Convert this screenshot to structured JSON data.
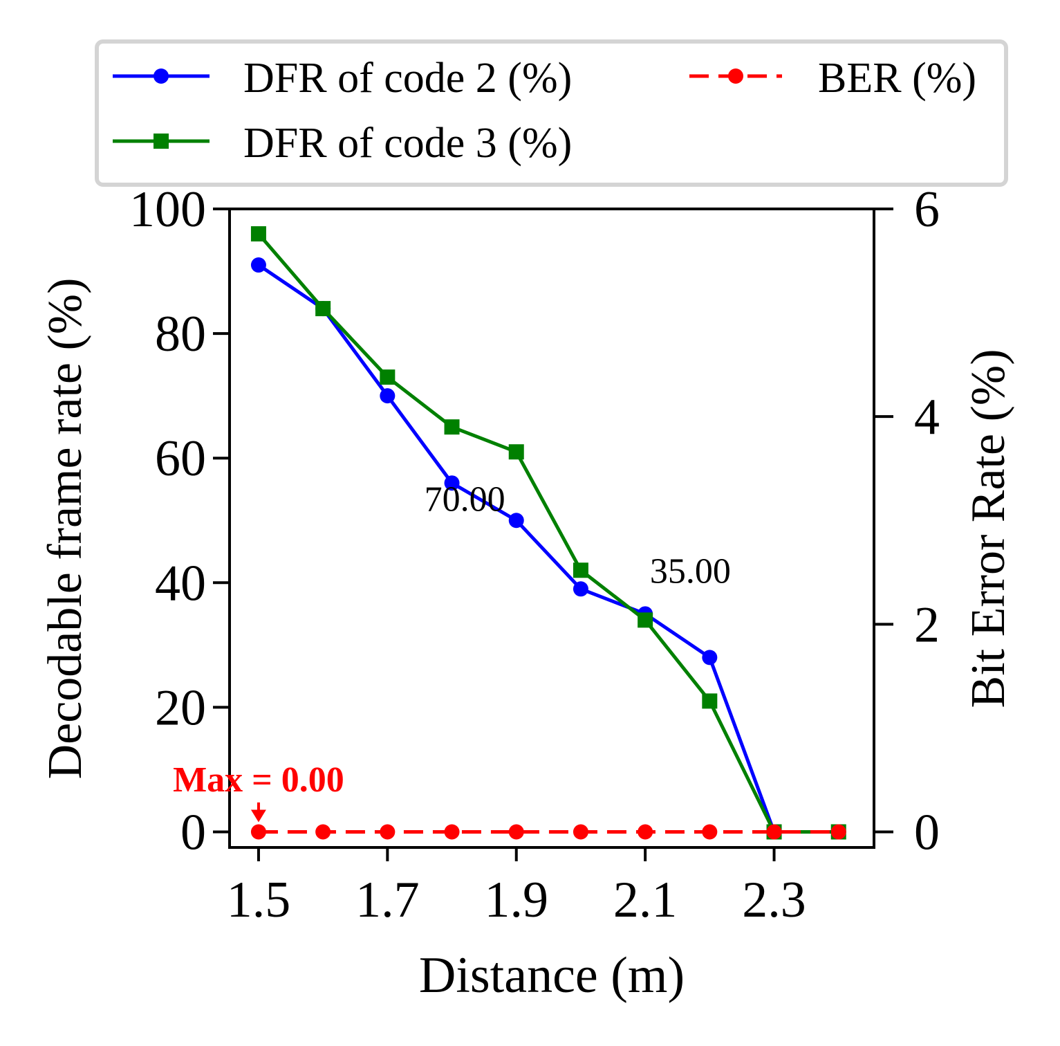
{
  "chart_data": {
    "type": "line",
    "x": [
      1.5,
      1.6,
      1.7,
      1.8,
      1.9,
      2.0,
      2.1,
      2.2,
      2.3,
      2.4
    ],
    "xlabel": "Distance (m)",
    "ylabel": "Decodable frame rate (%)",
    "y2label": "Bit Error Rate (%)",
    "xticks": [
      "1.5",
      "1.7",
      "1.9",
      "2.1",
      "2.3"
    ],
    "xtick_values": [
      1.5,
      1.7,
      1.9,
      2.1,
      2.3
    ],
    "yticks": [
      "0",
      "20",
      "40",
      "60",
      "80",
      "100"
    ],
    "ytick_values": [
      0,
      20,
      40,
      60,
      80,
      100
    ],
    "y2ticks": [
      "0",
      "2",
      "4",
      "6"
    ],
    "y2tick_values": [
      0,
      2,
      4,
      6
    ],
    "xlim": [
      1.455,
      2.455
    ],
    "ylim": [
      -2.5,
      100
    ],
    "y2lim": [
      -0.15,
      6
    ],
    "grid": false,
    "legend_position": "top",
    "series": [
      {
        "name": "DFR of code 2 (%)",
        "axis": "left",
        "color": "#0000ff",
        "marker": "circle",
        "linestyle": "solid",
        "values": [
          91,
          84,
          70,
          56,
          50,
          39,
          35,
          28,
          0,
          0
        ]
      },
      {
        "name": "DFR of code 3 (%)",
        "axis": "left",
        "color": "#008000",
        "marker": "square",
        "linestyle": "solid",
        "values": [
          96,
          84,
          73,
          65,
          61,
          42,
          34,
          21,
          0,
          0
        ]
      },
      {
        "name": "BER (%)",
        "axis": "right",
        "color": "#ff0000",
        "marker": "circle",
        "linestyle": "dashed",
        "values": [
          0,
          0,
          0,
          0,
          0,
          0,
          0,
          0,
          0,
          0
        ]
      }
    ],
    "annotations": [
      {
        "text": "70.00",
        "x": 1.82,
        "y": 51.5,
        "color": "#000000"
      },
      {
        "text": "35.00",
        "x": 2.17,
        "y": 40,
        "color": "#000000"
      },
      {
        "text": "Max = 0.00",
        "x": 1.5,
        "y": 6.5,
        "color": "#ff0000",
        "bold": true,
        "arrow_to": [
          1.5,
          0
        ]
      }
    ]
  }
}
